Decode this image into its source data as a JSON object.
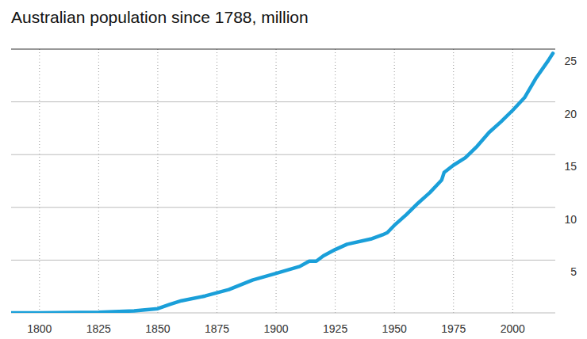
{
  "chart_data": {
    "type": "line",
    "title": "Australian population since 1788, million",
    "x": [
      1788,
      1800,
      1825,
      1840,
      1850,
      1855,
      1860,
      1870,
      1880,
      1890,
      1900,
      1910,
      1914,
      1917,
      1920,
      1925,
      1930,
      1940,
      1945,
      1947,
      1950,
      1955,
      1960,
      1965,
      1970,
      1971,
      1975,
      1980,
      1985,
      1990,
      1995,
      2000,
      2005,
      2010,
      2015,
      2017
    ],
    "values": [
      0.001,
      0.005,
      0.05,
      0.19,
      0.4,
      0.8,
      1.15,
      1.6,
      2.2,
      3.1,
      3.75,
      4.4,
      4.9,
      4.9,
      5.4,
      6.0,
      6.5,
      7.0,
      7.4,
      7.6,
      8.3,
      9.3,
      10.4,
      11.4,
      12.6,
      13.3,
      14.0,
      14.7,
      15.8,
      17.1,
      18.1,
      19.2,
      20.4,
      22.3,
      23.9,
      24.6
    ],
    "color": "#1a9fd9",
    "xlim": [
      1788,
      2018
    ],
    "xticks": [
      1800,
      1825,
      1850,
      1875,
      1900,
      1925,
      1950,
      1975,
      2000
    ],
    "ylim": [
      0,
      25
    ],
    "yticks": [
      5,
      10,
      15,
      20,
      25
    ],
    "grid": true
  }
}
